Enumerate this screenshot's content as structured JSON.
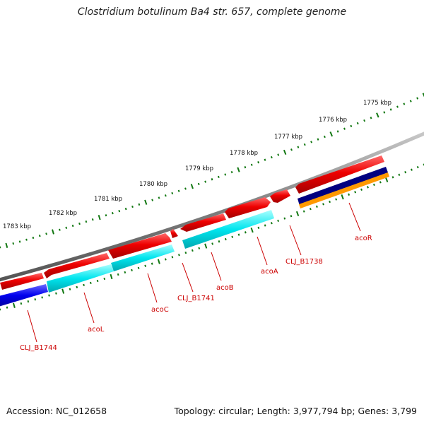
{
  "title": "Clostridium botulinum Ba4 str. 657, complete genome",
  "footer": {
    "accession": "Accession: NC_012658",
    "topology": "Topology: circular; Length: 3,977,794 bp; Genes: 3,799"
  },
  "ruler": {
    "labels": [
      "1775 kbp",
      "1776 kbp",
      "1777 kbp",
      "1778 kbp",
      "1779 kbp",
      "1780 kbp",
      "1781 kbp",
      "1782 kbp",
      "1783 kbp"
    ]
  },
  "genes": {
    "labels": [
      "CLJ_B1744",
      "acoL",
      "acoC",
      "CLJ_B1741",
      "acoB",
      "acoA",
      "CLJ_B1738",
      "acoR"
    ]
  },
  "colors": {
    "backbone": "#808080",
    "cds": "#ee0000",
    "feature_cyan": "#00e5ee",
    "feature_blue": "#0000ee",
    "feature_navy": "#000080",
    "feature_orange": "#ff9900",
    "ruler_green": "#117711",
    "label_red": "#cc0000"
  }
}
